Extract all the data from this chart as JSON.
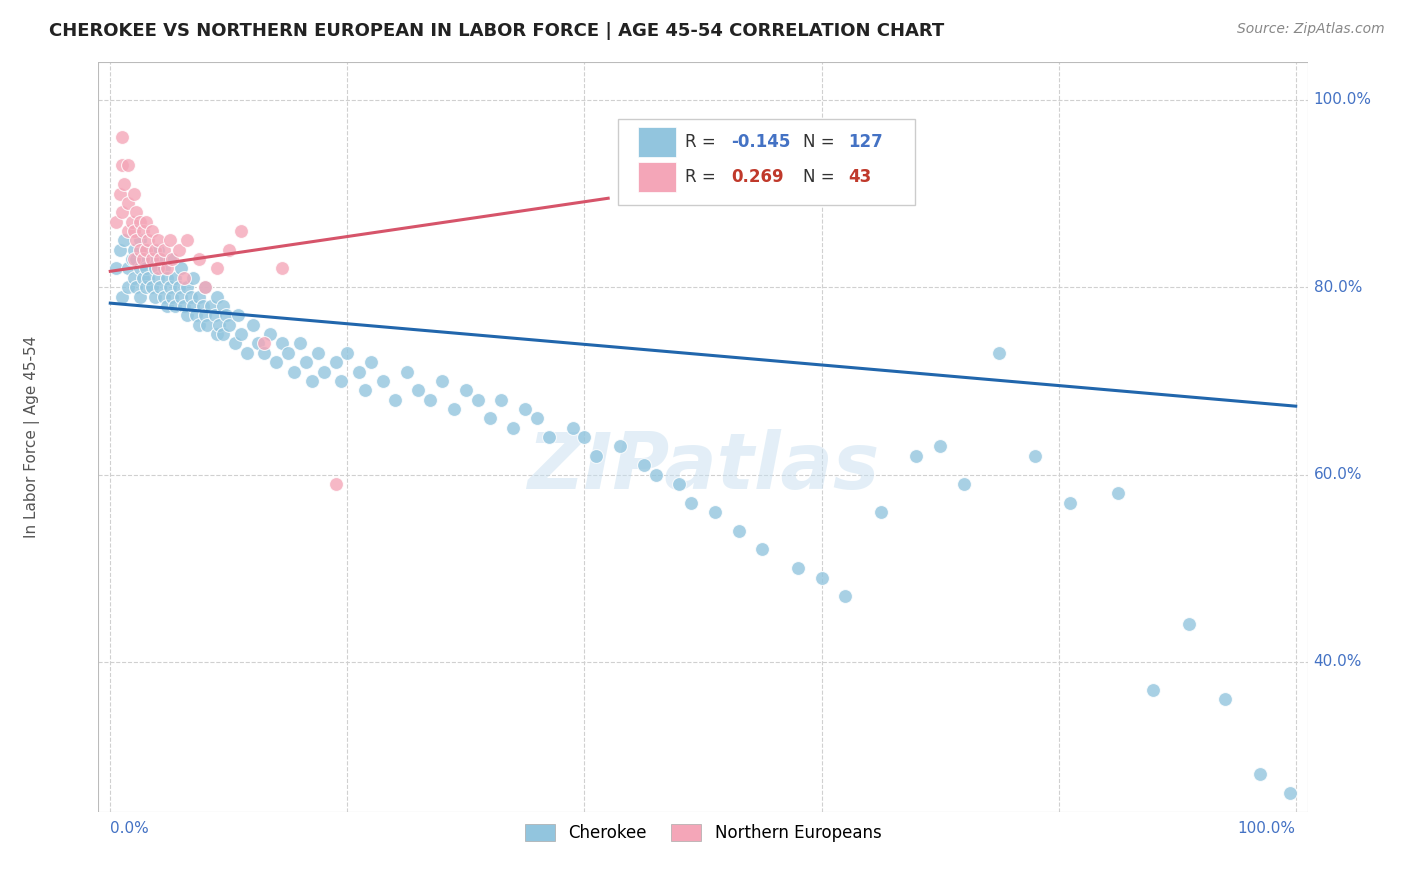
{
  "title": "CHEROKEE VS NORTHERN EUROPEAN IN LABOR FORCE | AGE 45-54 CORRELATION CHART",
  "source": "Source: ZipAtlas.com",
  "ylabel": "In Labor Force | Age 45-54",
  "xlim": [
    -0.01,
    1.01
  ],
  "ylim": [
    0.24,
    1.04
  ],
  "x_ticklabels_left": "0.0%",
  "x_ticklabels_right": "100.0%",
  "y_tick_positions": [
    0.4,
    0.6,
    0.8,
    1.0
  ],
  "y_ticklabels": [
    "40.0%",
    "60.0%",
    "80.0%",
    "100.0%"
  ],
  "blue_color": "#92c5de",
  "pink_color": "#f4a6b8",
  "trendline_blue": "#2166ac",
  "trendline_pink": "#d6546a",
  "watermark": "ZIPatlas",
  "blue_trend_x0": 0.0,
  "blue_trend_y0": 0.783,
  "blue_trend_x1": 1.0,
  "blue_trend_y1": 0.673,
  "pink_trend_x0": 0.0,
  "pink_trend_y0": 0.817,
  "pink_trend_x1": 0.42,
  "pink_trend_y1": 0.895,
  "background_color": "#ffffff",
  "grid_color": "#d0d0d0",
  "marker_size": 100,
  "blue_x": [
    0.005,
    0.008,
    0.01,
    0.012,
    0.015,
    0.015,
    0.018,
    0.02,
    0.02,
    0.022,
    0.022,
    0.025,
    0.025,
    0.025,
    0.028,
    0.028,
    0.03,
    0.03,
    0.03,
    0.032,
    0.035,
    0.035,
    0.038,
    0.038,
    0.04,
    0.04,
    0.042,
    0.042,
    0.045,
    0.045,
    0.048,
    0.048,
    0.05,
    0.05,
    0.052,
    0.055,
    0.055,
    0.058,
    0.06,
    0.06,
    0.062,
    0.065,
    0.065,
    0.068,
    0.07,
    0.07,
    0.072,
    0.075,
    0.075,
    0.078,
    0.08,
    0.08,
    0.082,
    0.085,
    0.088,
    0.09,
    0.09,
    0.092,
    0.095,
    0.095,
    0.098,
    0.1,
    0.105,
    0.108,
    0.11,
    0.115,
    0.12,
    0.125,
    0.13,
    0.135,
    0.14,
    0.145,
    0.15,
    0.155,
    0.16,
    0.165,
    0.17,
    0.175,
    0.18,
    0.19,
    0.195,
    0.2,
    0.21,
    0.215,
    0.22,
    0.23,
    0.24,
    0.25,
    0.26,
    0.27,
    0.28,
    0.29,
    0.3,
    0.31,
    0.32,
    0.33,
    0.34,
    0.35,
    0.36,
    0.37,
    0.39,
    0.4,
    0.41,
    0.43,
    0.45,
    0.46,
    0.48,
    0.49,
    0.51,
    0.53,
    0.55,
    0.58,
    0.6,
    0.62,
    0.65,
    0.68,
    0.7,
    0.72,
    0.75,
    0.78,
    0.81,
    0.85,
    0.88,
    0.91,
    0.94,
    0.97,
    0.995
  ],
  "blue_y": [
    0.82,
    0.84,
    0.79,
    0.85,
    0.82,
    0.8,
    0.83,
    0.84,
    0.81,
    0.83,
    0.8,
    0.82,
    0.85,
    0.79,
    0.81,
    0.83,
    0.82,
    0.8,
    0.84,
    0.81,
    0.83,
    0.8,
    0.82,
    0.79,
    0.81,
    0.84,
    0.8,
    0.83,
    0.79,
    0.82,
    0.81,
    0.78,
    0.8,
    0.83,
    0.79,
    0.81,
    0.78,
    0.8,
    0.79,
    0.82,
    0.78,
    0.8,
    0.77,
    0.79,
    0.78,
    0.81,
    0.77,
    0.79,
    0.76,
    0.78,
    0.77,
    0.8,
    0.76,
    0.78,
    0.77,
    0.75,
    0.79,
    0.76,
    0.78,
    0.75,
    0.77,
    0.76,
    0.74,
    0.77,
    0.75,
    0.73,
    0.76,
    0.74,
    0.73,
    0.75,
    0.72,
    0.74,
    0.73,
    0.71,
    0.74,
    0.72,
    0.7,
    0.73,
    0.71,
    0.72,
    0.7,
    0.73,
    0.71,
    0.69,
    0.72,
    0.7,
    0.68,
    0.71,
    0.69,
    0.68,
    0.7,
    0.67,
    0.69,
    0.68,
    0.66,
    0.68,
    0.65,
    0.67,
    0.66,
    0.64,
    0.65,
    0.64,
    0.62,
    0.63,
    0.61,
    0.6,
    0.59,
    0.57,
    0.56,
    0.54,
    0.52,
    0.5,
    0.49,
    0.47,
    0.56,
    0.62,
    0.63,
    0.59,
    0.73,
    0.62,
    0.57,
    0.58,
    0.37,
    0.44,
    0.36,
    0.28,
    0.26
  ],
  "pink_x": [
    0.005,
    0.008,
    0.01,
    0.01,
    0.01,
    0.012,
    0.015,
    0.015,
    0.015,
    0.018,
    0.02,
    0.02,
    0.02,
    0.022,
    0.022,
    0.025,
    0.025,
    0.028,
    0.028,
    0.03,
    0.03,
    0.032,
    0.035,
    0.035,
    0.038,
    0.04,
    0.04,
    0.042,
    0.045,
    0.048,
    0.05,
    0.052,
    0.058,
    0.062,
    0.065,
    0.075,
    0.08,
    0.09,
    0.1,
    0.11,
    0.13,
    0.145,
    0.19
  ],
  "pink_y": [
    0.87,
    0.9,
    0.88,
    0.93,
    0.96,
    0.91,
    0.89,
    0.86,
    0.93,
    0.87,
    0.9,
    0.86,
    0.83,
    0.88,
    0.85,
    0.87,
    0.84,
    0.86,
    0.83,
    0.87,
    0.84,
    0.85,
    0.83,
    0.86,
    0.84,
    0.85,
    0.82,
    0.83,
    0.84,
    0.82,
    0.85,
    0.83,
    0.84,
    0.81,
    0.85,
    0.83,
    0.8,
    0.82,
    0.84,
    0.86,
    0.74,
    0.82,
    0.59
  ]
}
